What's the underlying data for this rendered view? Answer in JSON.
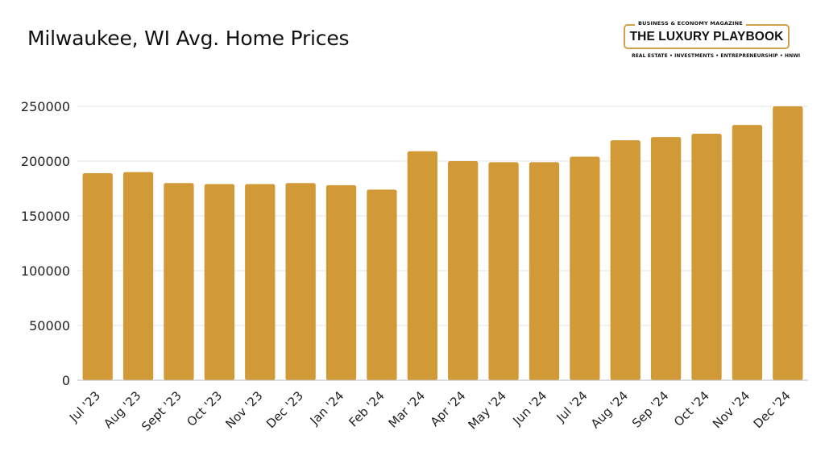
{
  "chart_data": {
    "type": "bar",
    "title": "Milwaukee, WI Avg. Home Prices",
    "xlabel": "",
    "ylabel": "",
    "categories": [
      "Jul '23",
      "Aug '23",
      "Sept '23",
      "Oct '23",
      "Nov '23",
      "Dec '23",
      "Jan '24",
      "Feb '24",
      "Mar '24",
      "Apr '24",
      "May '24",
      "Jun '24",
      "Jul '24",
      "Aug '24",
      "Sep '24",
      "Oct '24",
      "Nov '24",
      "Dec '24"
    ],
    "values": [
      189000,
      190000,
      180000,
      179000,
      179000,
      180000,
      178000,
      174000,
      209000,
      200000,
      199000,
      199000,
      204000,
      219000,
      222000,
      225000,
      233000,
      250000
    ],
    "ylim": [
      0,
      250000
    ],
    "yticks": [
      0,
      50000,
      100000,
      150000,
      200000,
      250000
    ],
    "grid": true,
    "bar_color": "#d29a36",
    "grid_color": "#e3e3e3"
  },
  "logo": {
    "top_tag": "BUSINESS & ECONOMY MAGAZINE",
    "name": "THE LUXURY PLAYBOOK",
    "bottom_tag": "REAL ESTATE • INVESTMENTS • ENTREPRENEURSHIP • HNWI"
  }
}
